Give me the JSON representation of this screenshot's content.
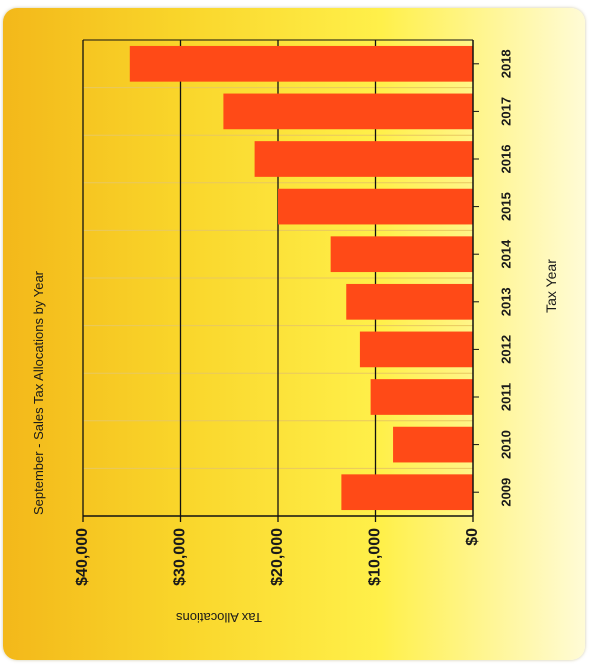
{
  "chart_data": {
    "type": "bar",
    "orientation": "horizontal",
    "title": "September - Sales Tax Allocations by Year",
    "xlabel": "Tax Year",
    "ylabel": "Tax Allocations",
    "categories": [
      "2009",
      "2010",
      "2011",
      "2012",
      "2013",
      "2014",
      "2015",
      "2016",
      "2017",
      "2018"
    ],
    "values": [
      13500,
      8200,
      10500,
      11600,
      13000,
      14600,
      20000,
      22400,
      25600,
      35200
    ],
    "ylim": [
      0,
      40000
    ],
    "value_ticks": [
      "$0",
      "$10,000",
      "$20,000",
      "$30,000",
      "$40,000"
    ],
    "grid": true,
    "bar_color": "#ff4a17",
    "background_gradient": [
      "#f3b81a",
      "#fff04a",
      "#fffbd6"
    ],
    "legend": "none"
  }
}
